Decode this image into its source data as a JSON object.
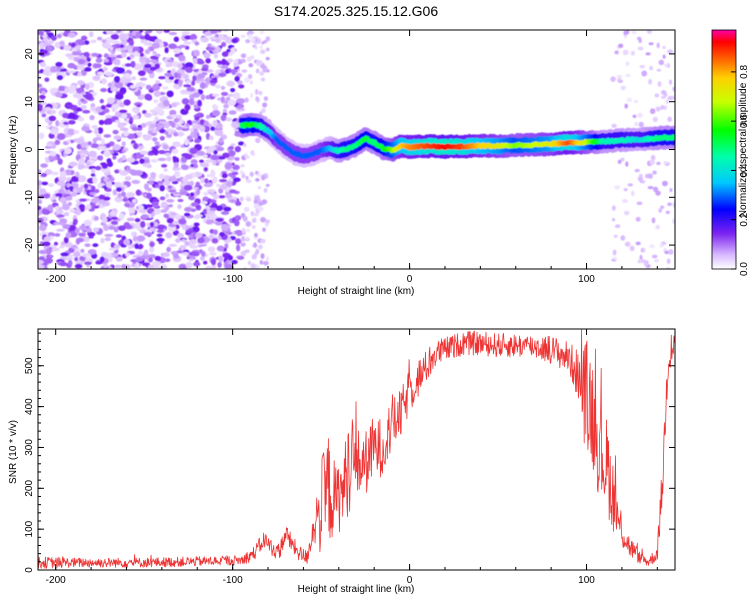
{
  "title": "S174.2025.325.15.12.G06",
  "charts": {
    "spectrogram": {
      "xlabel": "Height of straight line (km)",
      "ylabel": "Frequency (Hz)",
      "x_ticks": [
        "-200",
        "-100",
        "0",
        "100"
      ],
      "y_ticks": [
        "20",
        "10",
        "0",
        "-10",
        "-20"
      ],
      "colorbar_label": "Normalized spectral amplitude",
      "colorbar_ticks": [
        "0.0",
        "0.2",
        "0.4",
        "0.6",
        "0.8"
      ]
    },
    "snr": {
      "xlabel": "Height of straight line (km)",
      "ylabel": "SNR (10 * v/v)",
      "x_ticks": [
        "-200",
        "-100",
        "0",
        "100"
      ],
      "y_ticks": [
        "0",
        "100",
        "200",
        "300",
        "400",
        "500"
      ]
    }
  },
  "chart_data": [
    {
      "type": "heatmap",
      "title": "S174.2025.325.15.12.G06",
      "xlabel": "Height of straight line (km)",
      "ylabel": "Frequency (Hz)",
      "xlim": [
        -210,
        150
      ],
      "ylim": [
        -25,
        25
      ],
      "colorbar": {
        "label": "Normalized spectral amplitude",
        "range": [
          0,
          0.97
        ],
        "ticks": [
          0,
          0.2,
          0.4,
          0.6,
          0.8
        ]
      },
      "noise_region_km": [
        -210,
        -95
      ],
      "sparse_noise_regions_km": [
        [
          -95,
          -80
        ],
        [
          115,
          150
        ]
      ],
      "ridge": {
        "x": [
          -95,
          -90,
          -85,
          -80,
          -75,
          -70,
          -65,
          -60,
          -55,
          -50,
          -45,
          -40,
          -35,
          -30,
          -25,
          -20,
          -15,
          -10,
          -5,
          0,
          10,
          20,
          30,
          40,
          50,
          60,
          70,
          80,
          90,
          100,
          110,
          120,
          130,
          140,
          150
        ],
        "y": [
          5,
          5.2,
          5,
          4,
          2,
          0.5,
          -0.8,
          -1.4,
          -1.0,
          -0.2,
          0.3,
          -0.3,
          0.2,
          1.0,
          2.3,
          1.5,
          0.3,
          -0.2,
          0.8,
          0.5,
          0.7,
          0.6,
          0.6,
          0.8,
          0.7,
          0.9,
          1.0,
          1.1,
          1.5,
          1.5,
          1.7,
          2.0,
          2.1,
          2.4,
          2.6
        ],
        "amplitude": [
          0.5,
          0.6,
          0.5,
          0.4,
          0.3,
          0.3,
          0.3,
          0.3,
          0.3,
          0.3,
          0.35,
          0.45,
          0.5,
          0.5,
          0.55,
          0.5,
          0.55,
          0.65,
          0.8,
          0.85,
          0.9,
          0.95,
          0.9,
          0.8,
          0.75,
          0.65,
          0.7,
          0.75,
          0.9,
          0.7,
          0.45,
          0.45,
          0.4,
          0.5,
          0.5
        ]
      }
    },
    {
      "type": "line",
      "xlabel": "Height of straight line (km)",
      "ylabel": "SNR (10 * v/v)",
      "xlim": [
        -210,
        150
      ],
      "ylim": [
        0,
        590
      ],
      "series": [
        {
          "name": "SNR",
          "color": "#ee3333",
          "x": [
            -210,
            -190,
            -170,
            -150,
            -130,
            -110,
            -95,
            -88,
            -82,
            -78,
            -74,
            -70,
            -66,
            -62,
            -58,
            -54,
            -50,
            -46,
            -42,
            -38,
            -34,
            -30,
            -25,
            -20,
            -15,
            -10,
            -5,
            0,
            5,
            10,
            15,
            20,
            30,
            40,
            50,
            60,
            70,
            80,
            90,
            95,
            100,
            103,
            107,
            112,
            118,
            124,
            130,
            135,
            140,
            143,
            146,
            150
          ],
          "y": [
            18,
            18,
            18,
            18,
            20,
            22,
            24,
            40,
            75,
            55,
            40,
            90,
            60,
            40,
            30,
            110,
            150,
            200,
            170,
            190,
            260,
            260,
            260,
            300,
            300,
            360,
            380,
            440,
            470,
            500,
            530,
            540,
            555,
            555,
            550,
            550,
            548,
            540,
            520,
            480,
            420,
            400,
            300,
            250,
            120,
            60,
            30,
            20,
            40,
            220,
            520,
            560
          ],
          "noise": [
            15,
            12,
            12,
            12,
            12,
            12,
            12,
            18,
            22,
            20,
            20,
            25,
            22,
            20,
            18,
            45,
            120,
            140,
            90,
            90,
            120,
            90,
            80,
            80,
            70,
            70,
            60,
            55,
            50,
            40,
            35,
            30,
            30,
            30,
            30,
            30,
            30,
            35,
            40,
            60,
            150,
            150,
            120,
            120,
            60,
            30,
            15,
            12,
            20,
            60,
            60,
            40
          ]
        }
      ]
    }
  ]
}
